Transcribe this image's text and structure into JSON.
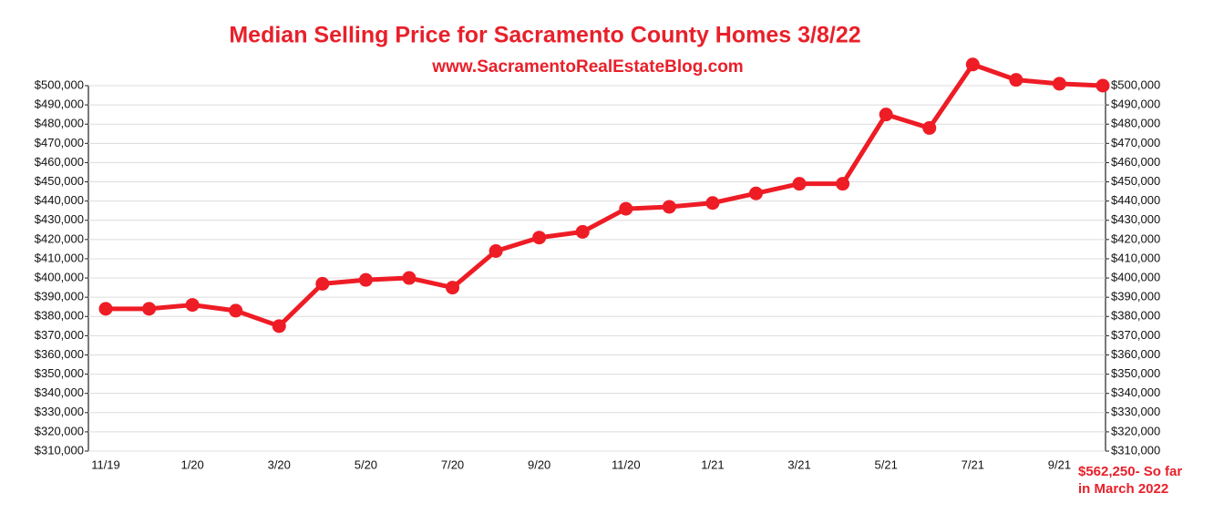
{
  "chart_data": {
    "type": "line",
    "title": "Median Selling Price for Sacramento County Homes 3/8/22",
    "subtitle": "www.SacramentoRealEstateBlog.com",
    "annotation": [
      "$562,250- So far",
      "in  March 2022"
    ],
    "categories": [
      "11/19",
      null,
      "1/20",
      null,
      "3/20",
      null,
      "5/20",
      null,
      "7/20",
      null,
      "9/20",
      null,
      "11/20",
      null,
      "1/21",
      null,
      "3/21",
      null,
      "5/21",
      null,
      "7/21",
      null,
      "9/21",
      null
    ],
    "values": [
      384000,
      384000,
      386000,
      383000,
      375000,
      397000,
      399000,
      400000,
      395000,
      414000,
      421000,
      424000,
      436000,
      437000,
      439000,
      444000,
      449000,
      449000,
      485000,
      478000,
      511000,
      503000,
      501000,
      500000
    ],
    "color": "#ee1c25",
    "grid": true,
    "ylim": [
      310000,
      500000
    ],
    "yticks": [
      {
        "value": 310000,
        "label": "$310,000"
      },
      {
        "value": 320000,
        "label": "$320,000"
      },
      {
        "value": 330000,
        "label": "$330,000"
      },
      {
        "value": 340000,
        "label": "$340,000"
      },
      {
        "value": 350000,
        "label": "$350,000"
      },
      {
        "value": 360000,
        "label": "$360,000"
      },
      {
        "value": 370000,
        "label": "$370,000"
      },
      {
        "value": 380000,
        "label": "$380,000"
      },
      {
        "value": 390000,
        "label": "$390,000"
      },
      {
        "value": 400000,
        "label": "$400,000"
      },
      {
        "value": 410000,
        "label": "$410,000"
      },
      {
        "value": 420000,
        "label": "$420,000"
      },
      {
        "value": 430000,
        "label": "$430,000"
      },
      {
        "value": 440000,
        "label": "$440,000"
      },
      {
        "value": 450000,
        "label": "$450,000"
      },
      {
        "value": 460000,
        "label": "$460,000"
      },
      {
        "value": 470000,
        "label": "$470,000"
      },
      {
        "value": 480000,
        "label": "$480,000"
      },
      {
        "value": 490000,
        "label": "$490,000"
      },
      {
        "value": 500000,
        "label": "$500,000"
      }
    ],
    "y2lim": [
      310000,
      500000
    ],
    "y2ticks": [
      {
        "value": 310000,
        "label": "$310,000"
      },
      {
        "value": 320000,
        "label": "$320,000"
      },
      {
        "value": 330000,
        "label": "$330,000"
      },
      {
        "value": 340000,
        "label": "$340,000"
      },
      {
        "value": 350000,
        "label": "$350,000"
      },
      {
        "value": 360000,
        "label": "$360,000"
      },
      {
        "value": 370000,
        "label": "$370,000"
      },
      {
        "value": 380000,
        "label": "$380,000"
      },
      {
        "value": 390000,
        "label": "$390,000"
      },
      {
        "value": 400000,
        "label": "$400,000"
      },
      {
        "value": 410000,
        "label": "$410,000"
      },
      {
        "value": 420000,
        "label": "$420,000"
      },
      {
        "value": 430000,
        "label": "$430,000"
      },
      {
        "value": 440000,
        "label": "$440,000"
      },
      {
        "value": 450000,
        "label": "$450,000"
      },
      {
        "value": 460000,
        "label": "$460,000"
      },
      {
        "value": 470000,
        "label": "$470,000"
      },
      {
        "value": 480000,
        "label": "$480,000"
      },
      {
        "value": 490000,
        "label": "$490,000"
      },
      {
        "value": 500000,
        "label": "$500,000"
      }
    ]
  }
}
